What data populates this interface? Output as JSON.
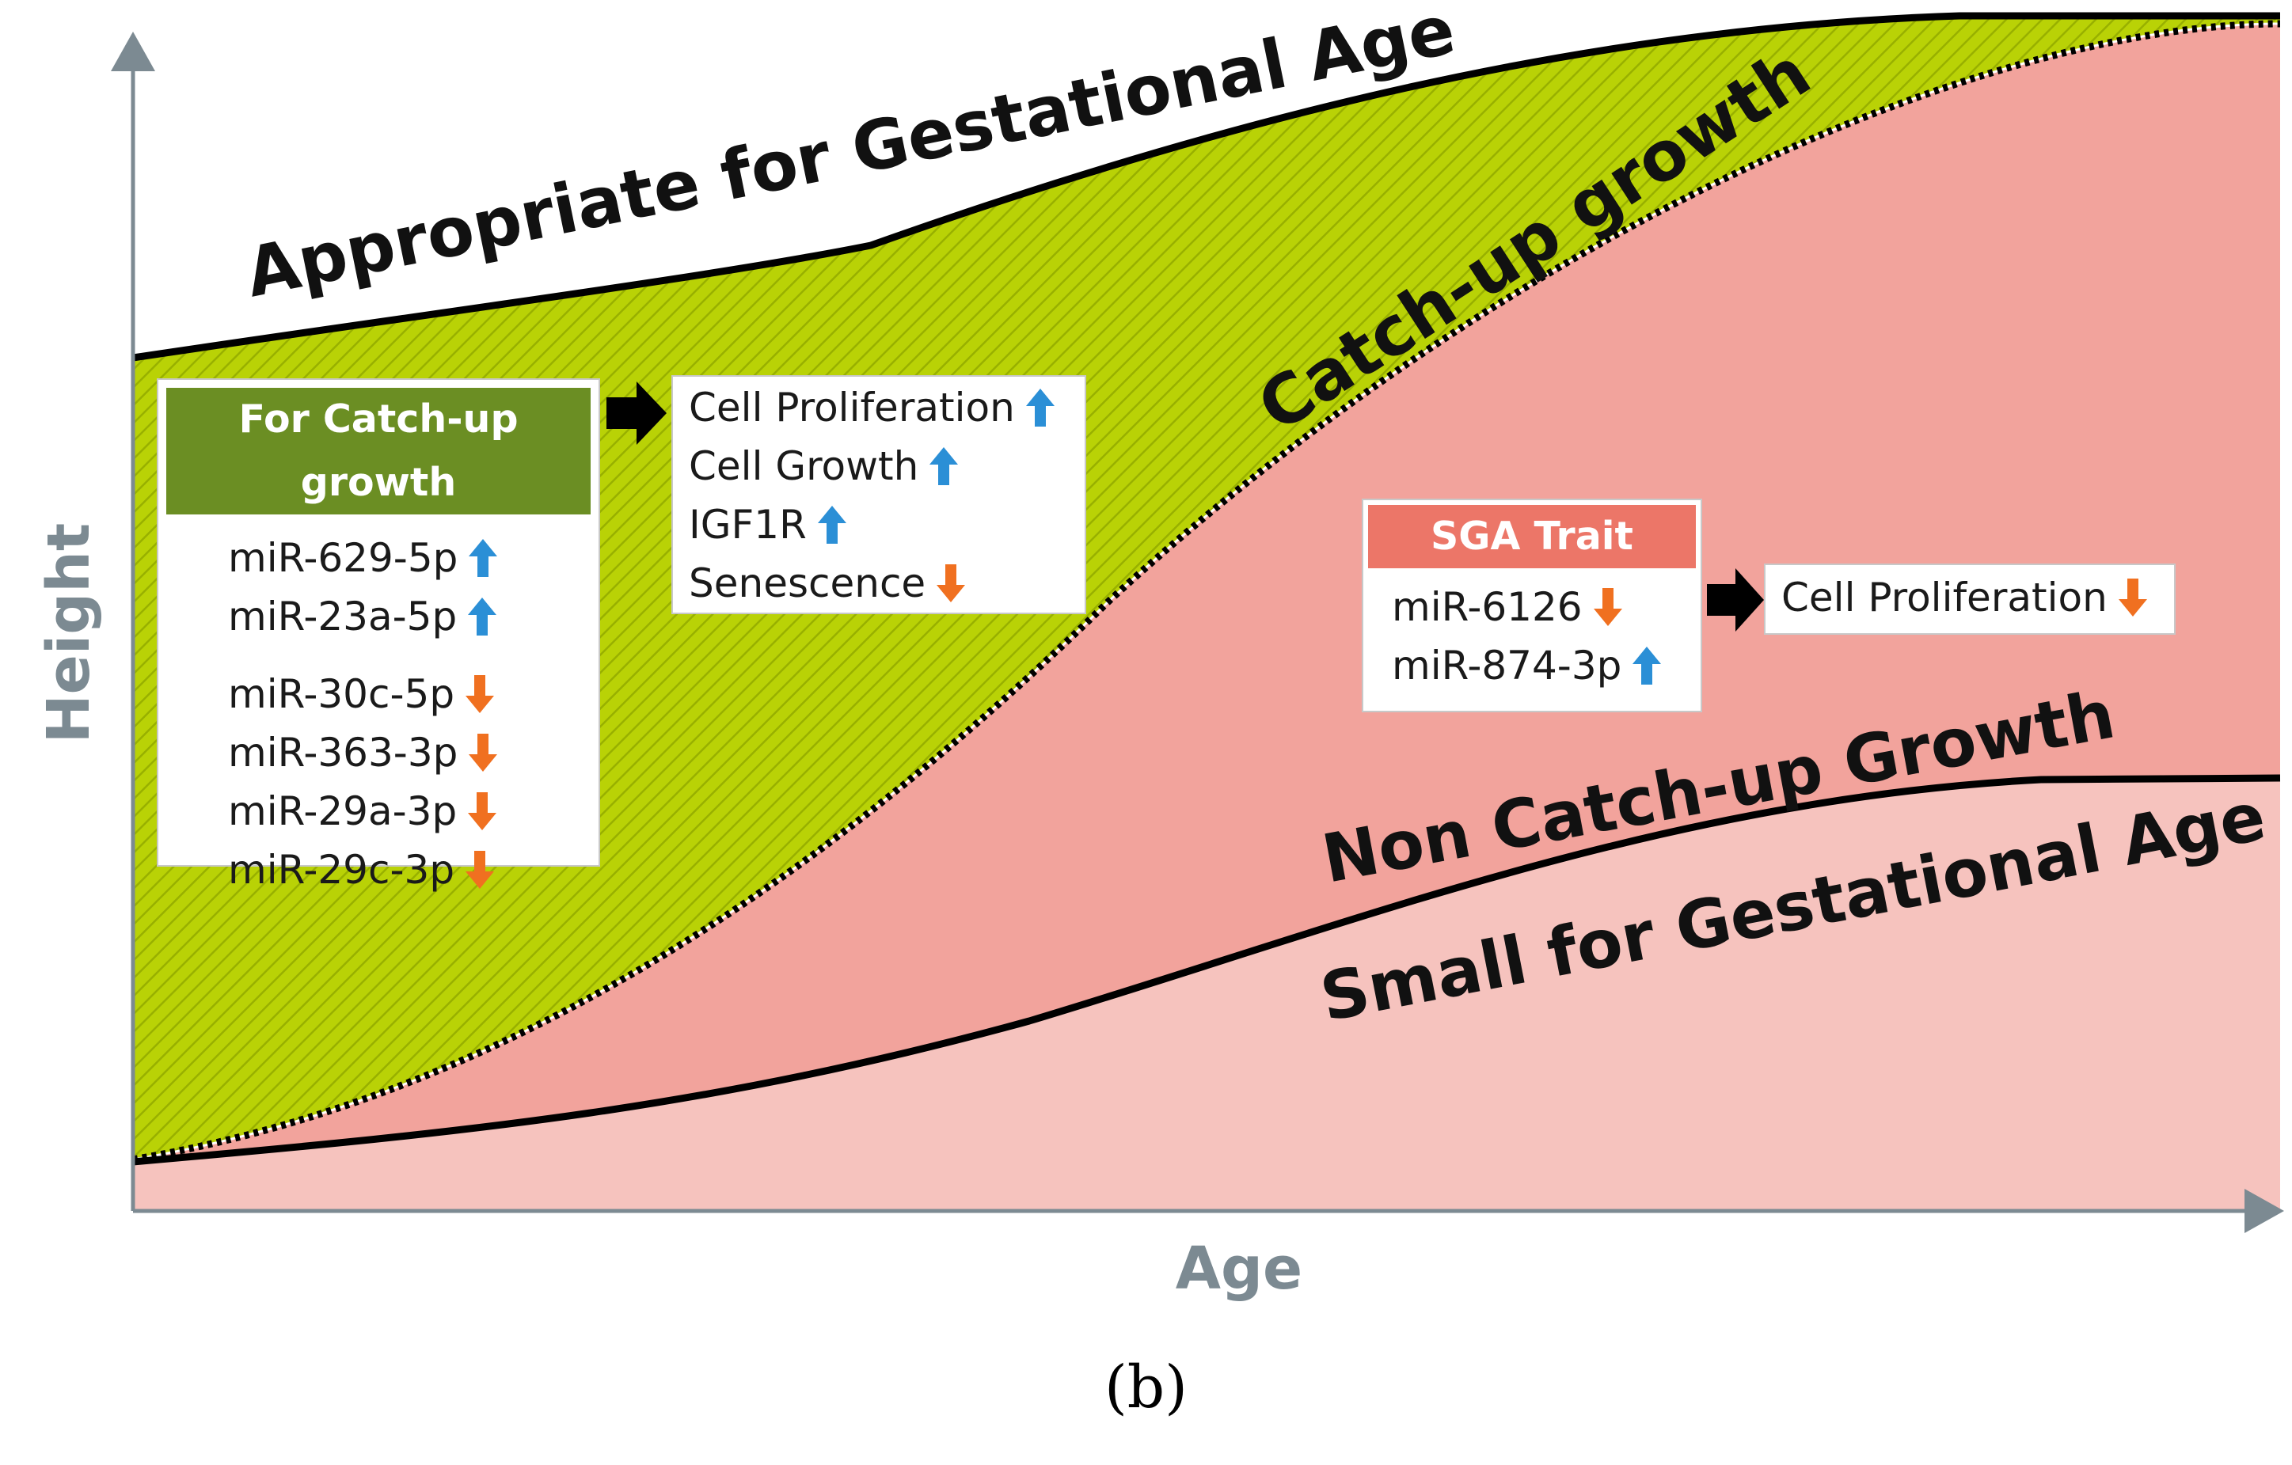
{
  "axes": {
    "x_label": "Age",
    "y_label": "Height"
  },
  "regions": {
    "aga": "Appropriate for Gestational Age",
    "catch_up": "Catch-up growth",
    "non_catch_up": "Non Catch-up Growth",
    "sga": "Small for Gestational Age"
  },
  "catchup_box": {
    "title": "For Catch-up growth",
    "items": [
      {
        "label": "miR-629-5p",
        "dir": "up"
      },
      {
        "label": "miR-23a-5p",
        "dir": "up"
      },
      {
        "label": "miR-30c-5p",
        "dir": "down"
      },
      {
        "label": "miR-363-3p",
        "dir": "down"
      },
      {
        "label": "miR-29a-3p",
        "dir": "down"
      },
      {
        "label": "miR-29c-3p",
        "dir": "down"
      }
    ]
  },
  "effects_box": {
    "items": [
      {
        "label": "Cell Proliferation",
        "dir": "up"
      },
      {
        "label": "Cell Growth",
        "dir": "up"
      },
      {
        "label": "IGF1R",
        "dir": "up"
      },
      {
        "label": "Senescence",
        "dir": "down"
      }
    ]
  },
  "sga_box": {
    "title": "SGA Trait",
    "items": [
      {
        "label": "miR-6126",
        "dir": "down"
      },
      {
        "label": "miR-874-3p",
        "dir": "up"
      }
    ]
  },
  "sga_effect_box": {
    "items": [
      {
        "label": "Cell Proliferation",
        "dir": "down"
      }
    ]
  },
  "caption": "(b)",
  "colors": {
    "up_arrow": "#2b8fd6",
    "down_arrow": "#f07020",
    "green_fill": "#b9d206",
    "green_header": "#6b8e23",
    "red_fill": "#f2a39c",
    "pink_fill": "#f6c3be",
    "sga_header": "#ec7668",
    "axis": "#7c8a92"
  }
}
